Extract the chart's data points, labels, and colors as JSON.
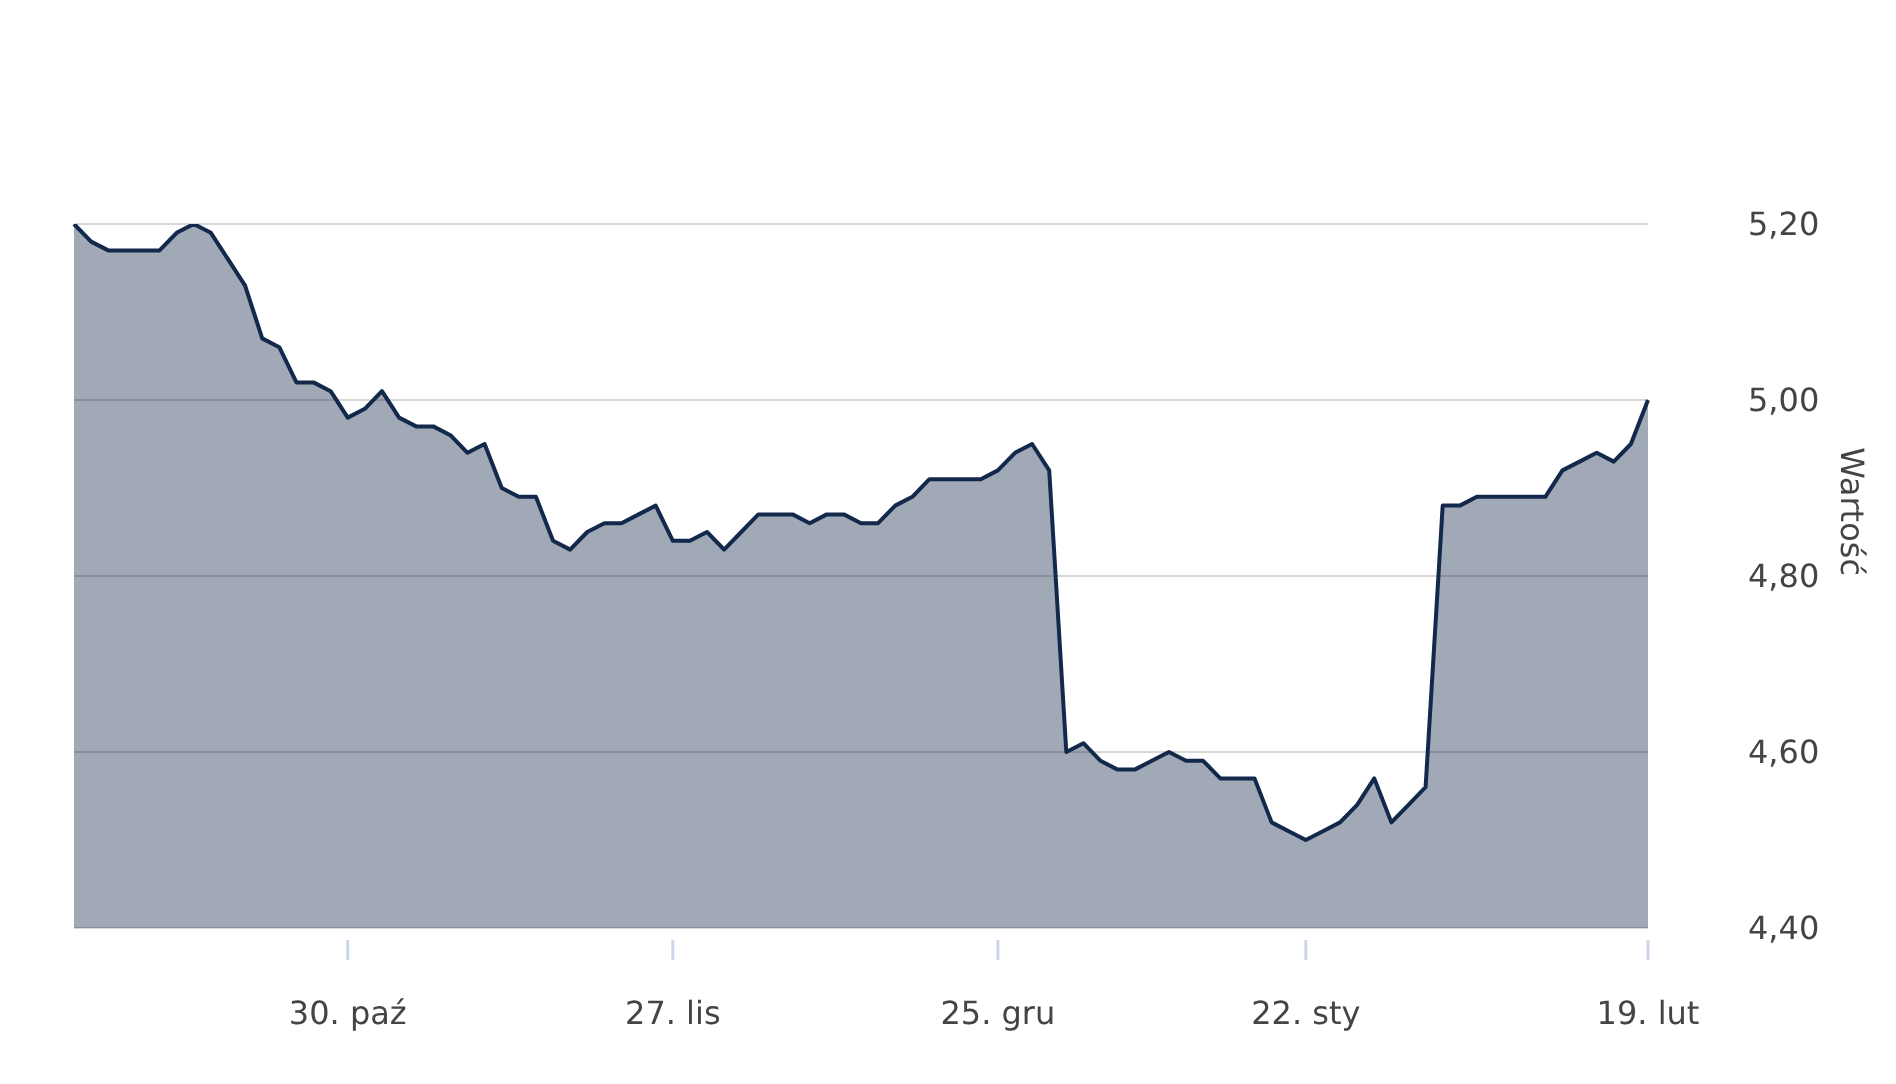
{
  "chart_data": {
    "type": "area",
    "ylabel": "Wartość",
    "categories": [
      null,
      null,
      null,
      null,
      null,
      null,
      null,
      null,
      null,
      null,
      null,
      null,
      null,
      null,
      null,
      null,
      "30. paź",
      null,
      null,
      null,
      null,
      null,
      null,
      null,
      null,
      null,
      null,
      null,
      null,
      null,
      null,
      null,
      null,
      null,
      null,
      "27. lis",
      null,
      null,
      null,
      null,
      null,
      null,
      null,
      null,
      null,
      null,
      null,
      null,
      null,
      null,
      null,
      null,
      null,
      null,
      "25. gru",
      null,
      null,
      null,
      null,
      null,
      null,
      null,
      null,
      null,
      null,
      null,
      null,
      null,
      null,
      null,
      null,
      null,
      "22. sty",
      null,
      null,
      null,
      null,
      null,
      null,
      null,
      null,
      null,
      null,
      null,
      null,
      null,
      null,
      null,
      null,
      null,
      null,
      null,
      "19. lut"
    ],
    "series": [
      {
        "color": "#13294b",
        "values": [
          5.2,
          5.18,
          5.17,
          5.17,
          5.17,
          5.17,
          5.19,
          5.2,
          5.19,
          5.16,
          5.13,
          5.07,
          5.06,
          5.02,
          5.02,
          5.01,
          4.98,
          4.99,
          5.01,
          4.98,
          4.97,
          4.97,
          4.96,
          4.94,
          4.95,
          4.9,
          4.89,
          4.89,
          4.84,
          4.83,
          4.85,
          4.86,
          4.86,
          4.87,
          4.88,
          4.84,
          4.84,
          4.85,
          4.83,
          4.85,
          4.87,
          4.87,
          4.87,
          4.86,
          4.87,
          4.87,
          4.86,
          4.86,
          4.88,
          4.89,
          4.91,
          4.91,
          4.91,
          4.91,
          4.92,
          4.94,
          4.95,
          4.92,
          4.6,
          4.61,
          4.59,
          4.58,
          4.58,
          4.59,
          4.6,
          4.59,
          4.59,
          4.57,
          4.57,
          4.57,
          4.52,
          4.51,
          4.5,
          4.51,
          4.52,
          4.54,
          4.57,
          4.52,
          4.54,
          4.56,
          4.88,
          4.88,
          4.89,
          4.89,
          4.89,
          4.89,
          4.89,
          4.92,
          4.93,
          4.94,
          4.93,
          4.95,
          5.0
        ]
      }
    ],
    "ylim": [
      4.4,
      5.2
    ],
    "yticks": [
      {
        "value": 4.4,
        "label": "4,40"
      },
      {
        "value": 4.6,
        "label": "4,60"
      },
      {
        "value": 4.8,
        "label": "4,80"
      },
      {
        "value": 5.0,
        "label": "5,00"
      },
      {
        "value": 5.2,
        "label": "5,20"
      }
    ],
    "grid": "y",
    "legend": false
  }
}
